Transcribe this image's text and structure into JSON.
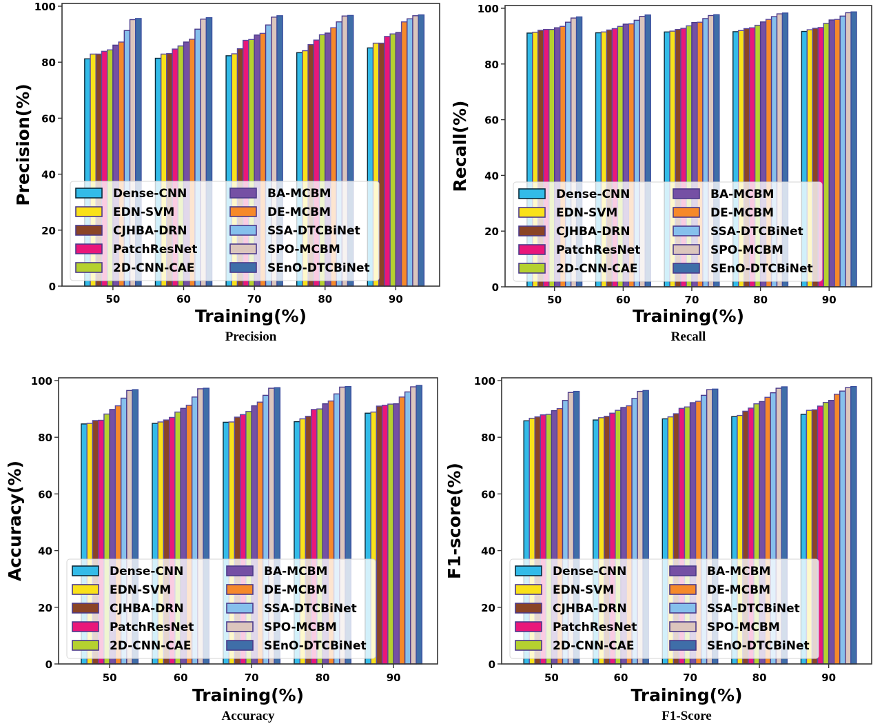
{
  "series_names": [
    "Dense-CNN",
    "EDN-SVM",
    "CJHBA-DRN",
    "PatchResNet",
    "2D-CNN-CAE",
    "BA-MCBM",
    "DE-MCBM",
    "SSA-DTCBiNet",
    "SPO-MCBM",
    "SEnO-DTCBiNet"
  ],
  "series_colors": [
    "#33bbe8",
    "#f9e11a",
    "#8a4426",
    "#e9177a",
    "#b5d12f",
    "#7550a4",
    "#f6892a",
    "#86c0ec",
    "#dcc6bd",
    "#3f6ea8"
  ],
  "chart_data": [
    {
      "type": "bar",
      "title": "",
      "caption": "Precision",
      "xlabel": "Training(%)",
      "ylabel": "Precision(%)",
      "categories": [
        "50",
        "60",
        "70",
        "80",
        "90"
      ],
      "ylim": [
        0,
        100
      ],
      "yticks": [
        "0",
        "20",
        "40",
        "60",
        "80",
        "100"
      ],
      "grid": false,
      "legend_position": "lower-left",
      "series": [
        {
          "name": "Dense-CNN",
          "values": [
            81.2,
            81.4,
            82.3,
            83.4,
            85.1
          ]
        },
        {
          "name": "EDN-SVM",
          "values": [
            82.9,
            82.9,
            83.0,
            84.1,
            86.8
          ]
        },
        {
          "name": "CJHBA-DRN",
          "values": [
            82.9,
            83.1,
            84.8,
            86.3,
            86.8
          ]
        },
        {
          "name": "PatchResNet",
          "values": [
            83.9,
            84.7,
            87.8,
            87.9,
            89.2
          ]
        },
        {
          "name": "2D-CNN-CAE",
          "values": [
            84.4,
            85.8,
            88.1,
            89.8,
            90.1
          ]
        },
        {
          "name": "BA-MCBM",
          "values": [
            86.1,
            87.2,
            89.7,
            90.4,
            90.6
          ]
        },
        {
          "name": "DE-MCBM",
          "values": [
            87.2,
            88.2,
            90.3,
            92.3,
            94.4
          ]
        },
        {
          "name": "SSA-DTCBiNet",
          "values": [
            91.3,
            91.8,
            93.3,
            94.4,
            95.5
          ]
        },
        {
          "name": "SPO-MCBM",
          "values": [
            95.2,
            95.4,
            96.1,
            96.5,
            96.6
          ]
        },
        {
          "name": "SEnO-DTCBiNet",
          "values": [
            95.6,
            95.9,
            96.6,
            96.7,
            96.9
          ]
        }
      ]
    },
    {
      "type": "bar",
      "title": "",
      "caption": "Recall",
      "xlabel": "Training(%)",
      "ylabel": "Recall(%)",
      "categories": [
        "50",
        "60",
        "70",
        "80",
        "90"
      ],
      "ylim": [
        0,
        100
      ],
      "yticks": [
        "0",
        "20",
        "40",
        "60",
        "80",
        "100"
      ],
      "grid": false,
      "legend_position": "lower-left",
      "series": [
        {
          "name": "Dense-CNN",
          "values": [
            91.1,
            91.2,
            91.5,
            91.6,
            91.7
          ]
        },
        {
          "name": "EDN-SVM",
          "values": [
            91.4,
            91.5,
            91.8,
            92.0,
            92.3
          ]
        },
        {
          "name": "CJHBA-DRN",
          "values": [
            92.1,
            92.2,
            92.4,
            92.7,
            92.8
          ]
        },
        {
          "name": "PatchResNet",
          "values": [
            92.4,
            92.7,
            92.8,
            93.0,
            93.1
          ]
        },
        {
          "name": "2D-CNN-CAE",
          "values": [
            92.4,
            93.5,
            93.7,
            93.9,
            94.6
          ]
        },
        {
          "name": "BA-MCBM",
          "values": [
            93.0,
            94.3,
            94.9,
            95.1,
            95.8
          ]
        },
        {
          "name": "DE-MCBM",
          "values": [
            93.5,
            94.4,
            95.0,
            96.0,
            96.0
          ]
        },
        {
          "name": "SSA-DTCBiNet",
          "values": [
            95.0,
            95.7,
            96.3,
            97.0,
            97.2
          ]
        },
        {
          "name": "SPO-MCBM",
          "values": [
            96.5,
            97.1,
            97.4,
            98.0,
            98.4
          ]
        },
        {
          "name": "SEnO-DTCBiNet",
          "values": [
            96.9,
            97.6,
            97.7,
            98.3,
            98.7
          ]
        }
      ]
    },
    {
      "type": "bar",
      "title": "",
      "caption": "Accuracy",
      "xlabel": "Training(%)",
      "ylabel": "Accuracy(%)",
      "categories": [
        "50",
        "60",
        "70",
        "80",
        "90"
      ],
      "ylim": [
        0,
        100
      ],
      "yticks": [
        "0",
        "20",
        "40",
        "60",
        "80",
        "100"
      ],
      "grid": false,
      "legend_position": "lower-left",
      "series": [
        {
          "name": "Dense-CNN",
          "values": [
            84.7,
            84.9,
            85.3,
            85.5,
            88.5
          ]
        },
        {
          "name": "EDN-SVM",
          "values": [
            84.9,
            85.4,
            85.4,
            86.5,
            88.9
          ]
        },
        {
          "name": "CJHBA-DRN",
          "values": [
            85.9,
            86.1,
            87.1,
            87.4,
            91.0
          ]
        },
        {
          "name": "PatchResNet",
          "values": [
            86.0,
            87.0,
            88.0,
            89.8,
            91.3
          ]
        },
        {
          "name": "2D-CNN-CAE",
          "values": [
            88.2,
            88.9,
            89.1,
            90.0,
            91.7
          ]
        },
        {
          "name": "BA-MCBM",
          "values": [
            89.8,
            90.2,
            91.1,
            91.8,
            91.8
          ]
        },
        {
          "name": "DE-MCBM",
          "values": [
            91.1,
            91.3,
            92.4,
            92.8,
            94.2
          ]
        },
        {
          "name": "SSA-DTCBiNet",
          "values": [
            93.8,
            94.2,
            94.8,
            95.3,
            96.0
          ]
        },
        {
          "name": "SPO-MCBM",
          "values": [
            96.5,
            97.1,
            97.3,
            97.7,
            97.8
          ]
        },
        {
          "name": "SEnO-DTCBiNet",
          "values": [
            96.8,
            97.3,
            97.5,
            97.9,
            98.3
          ]
        }
      ]
    },
    {
      "type": "bar",
      "title": "",
      "caption": "F1-Score",
      "xlabel": "Training(%)",
      "ylabel": "F1-score(%)",
      "categories": [
        "50",
        "60",
        "70",
        "80",
        "90"
      ],
      "ylim": [
        0,
        100
      ],
      "yticks": [
        "0",
        "20",
        "40",
        "60",
        "80",
        "100"
      ],
      "grid": false,
      "legend_position": "lower-left",
      "series": [
        {
          "name": "Dense-CNN",
          "values": [
            85.8,
            86.1,
            86.5,
            87.3,
            88.1
          ]
        },
        {
          "name": "EDN-SVM",
          "values": [
            86.7,
            86.9,
            87.2,
            87.7,
            89.5
          ]
        },
        {
          "name": "CJHBA-DRN",
          "values": [
            87.2,
            87.4,
            88.3,
            89.2,
            89.7
          ]
        },
        {
          "name": "PatchResNet",
          "values": [
            87.9,
            88.5,
            90.2,
            90.3,
            91.0
          ]
        },
        {
          "name": "2D-CNN-CAE",
          "values": [
            88.1,
            89.5,
            90.7,
            91.8,
            92.3
          ]
        },
        {
          "name": "BA-MCBM",
          "values": [
            89.4,
            90.5,
            92.2,
            92.6,
            93.0
          ]
        },
        {
          "name": "DE-MCBM",
          "values": [
            90.1,
            91.1,
            92.7,
            94.1,
            95.2
          ]
        },
        {
          "name": "SSA-DTCBiNet",
          "values": [
            93.0,
            93.7,
            94.8,
            95.7,
            96.3
          ]
        },
        {
          "name": "SPO-MCBM",
          "values": [
            95.8,
            96.2,
            96.8,
            97.3,
            97.5
          ]
        },
        {
          "name": "SEnO-DTCBiNet",
          "values": [
            96.2,
            96.5,
            97.0,
            97.8,
            97.9
          ]
        }
      ]
    }
  ]
}
